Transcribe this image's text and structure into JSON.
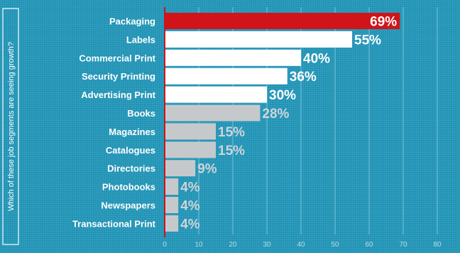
{
  "chart_data": {
    "type": "bar",
    "orientation": "horizontal",
    "ylabel": "Which of these job segments are seeing growth?",
    "categories": [
      "Packaging",
      "Labels",
      "Commercial Print",
      "Security Printing",
      "Advertising Print",
      "Books",
      "Magazines",
      "Catalogues",
      "Directories",
      "Photobooks",
      "Newspapers",
      "Transactional Print"
    ],
    "values": [
      69,
      55,
      40,
      36,
      30,
      28,
      15,
      15,
      9,
      4,
      4,
      4
    ],
    "value_labels": [
      "69%",
      "55%",
      "40%",
      "36%",
      "30%",
      "28%",
      "15%",
      "15%",
      "9%",
      "4%",
      "4%",
      "4%"
    ],
    "xlim": [
      0,
      80
    ],
    "xticks": [
      0,
      10,
      20,
      30,
      40,
      50,
      60,
      70,
      80
    ],
    "grid": true,
    "colors": {
      "background": "#1f93b5",
      "highlight_bar": "#d0141a",
      "upper_bar": "#ffffff",
      "lower_bar": "#c6c9cc",
      "highlight_value": "#ffffff",
      "upper_value": "#ffffff",
      "lower_value": "#cfd4d8",
      "axis": "#d0141a",
      "grid": "#7cc6dc"
    }
  }
}
